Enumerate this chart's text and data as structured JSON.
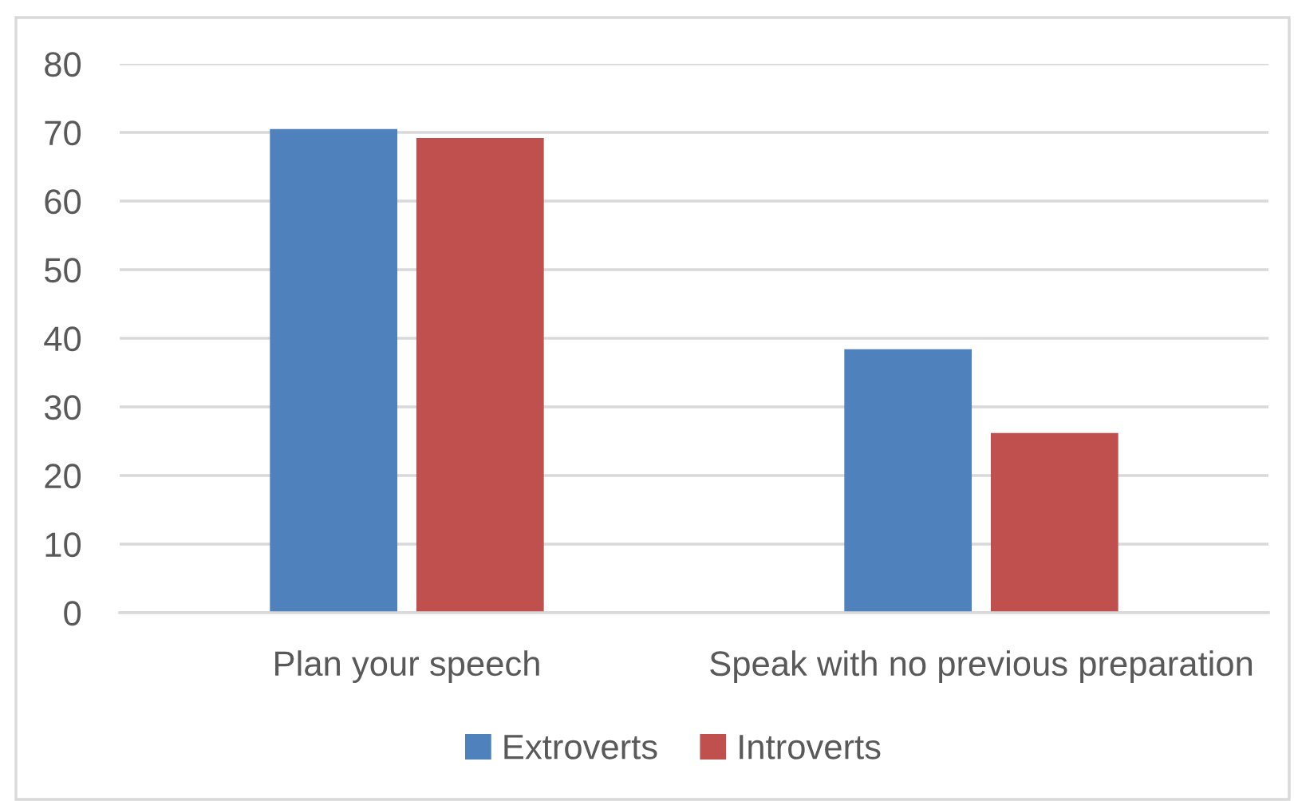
{
  "chart_data": {
    "type": "bar",
    "categories": [
      "Plan your speech",
      "Speak with no previous preparation"
    ],
    "series": [
      {
        "name": "Extroverts",
        "color": "#4f81bd",
        "values": [
          70.5,
          38.4
        ]
      },
      {
        "name": "Introverts",
        "color": "#c0504d",
        "values": [
          69.2,
          26.2
        ]
      }
    ],
    "ylim": [
      0,
      80
    ],
    "yticks": [
      0,
      10,
      20,
      30,
      40,
      50,
      60,
      70,
      80
    ],
    "grid": "y",
    "legend": "bottom"
  }
}
